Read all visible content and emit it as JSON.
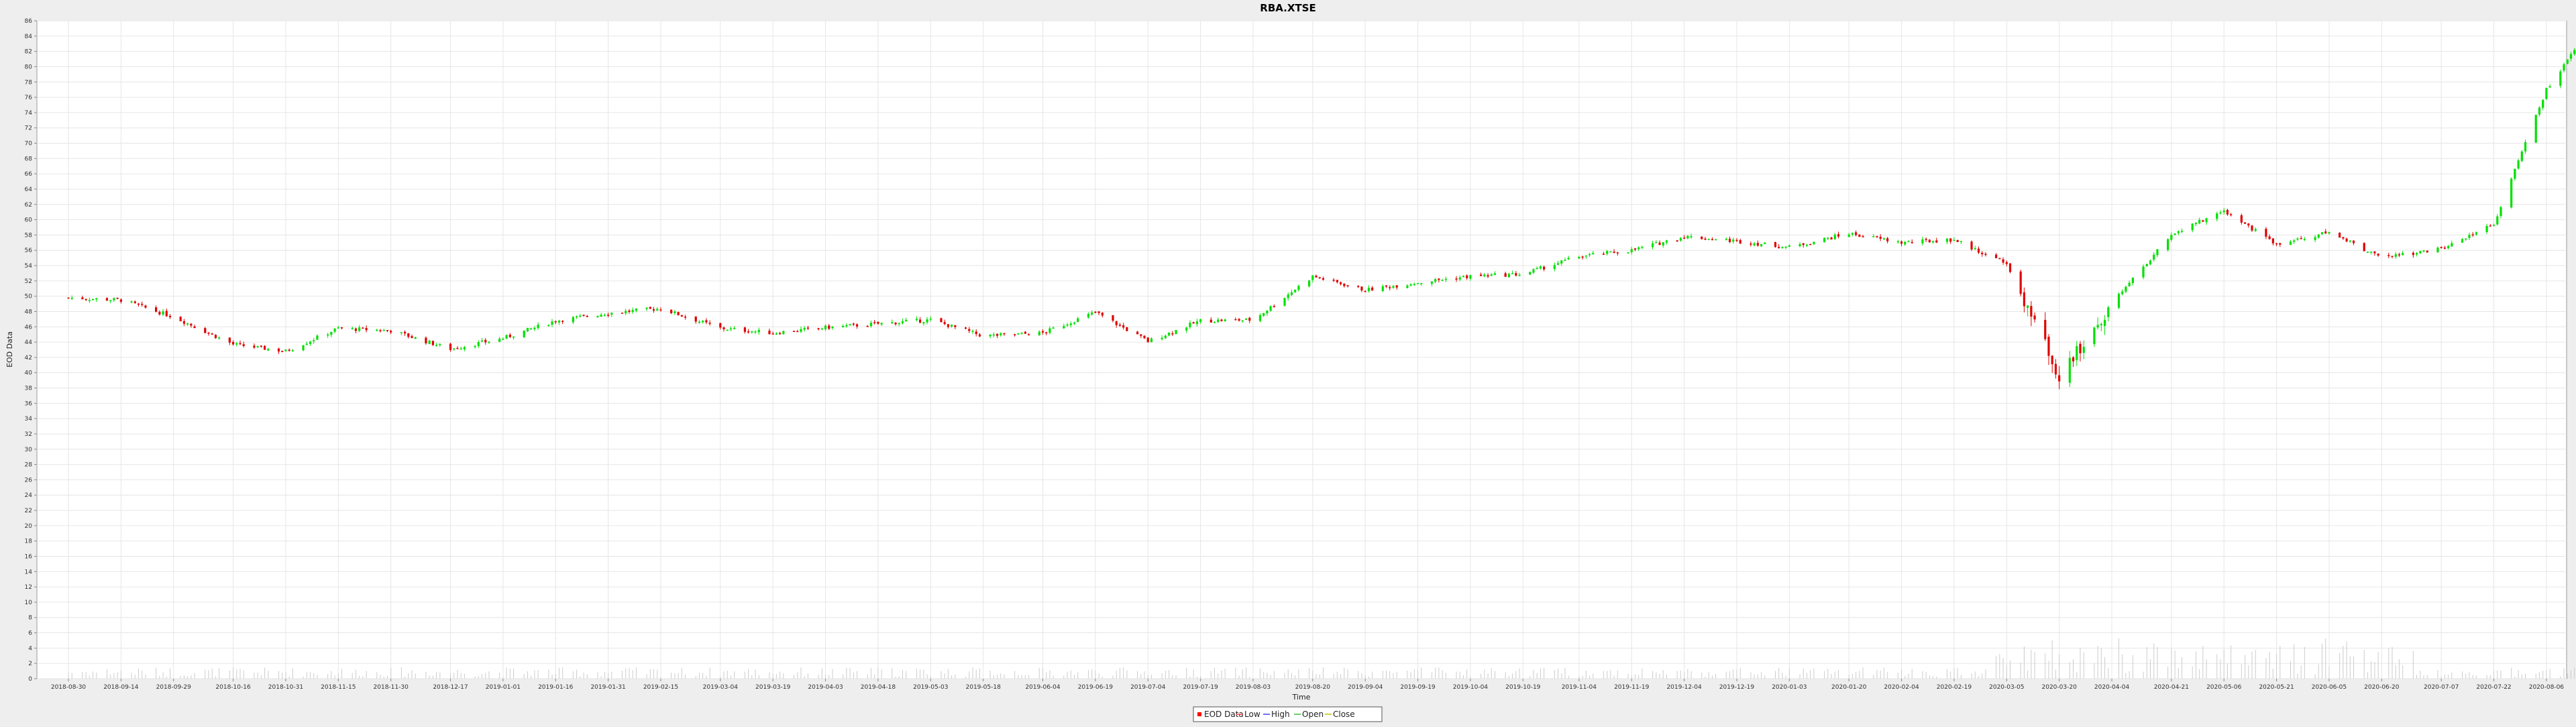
{
  "chart_data": {
    "type": "candlestick",
    "title": "RBA.XTSE",
    "xlabel": "Time",
    "ylabel": "EOD Data",
    "ylim": [
      0,
      86
    ],
    "y_ticks": [
      0,
      2,
      4,
      6,
      8,
      10,
      12,
      14,
      16,
      18,
      20,
      22,
      24,
      26,
      28,
      30,
      32,
      34,
      36,
      38,
      40,
      42,
      44,
      46,
      48,
      50,
      52,
      54,
      56,
      58,
      60,
      62,
      64,
      66,
      68,
      70,
      72,
      74,
      76,
      78,
      80,
      82,
      84,
      86
    ],
    "x_ticks": [
      "2018-08-30",
      "2018-09-14",
      "2018-09-29",
      "2018-10-16",
      "2018-10-31",
      "2018-11-15",
      "2018-11-30",
      "2018-12-17",
      "2019-01-01",
      "2019-01-16",
      "2019-01-31",
      "2019-02-15",
      "2019-03-04",
      "2019-03-19",
      "2019-04-03",
      "2019-04-18",
      "2019-05-03",
      "2019-05-18",
      "2019-06-04",
      "2019-06-19",
      "2019-07-04",
      "2019-07-19",
      "2019-08-03",
      "2019-08-20",
      "2019-09-04",
      "2019-09-19",
      "2019-10-04",
      "2019-10-19",
      "2019-11-04",
      "2019-11-19",
      "2019-12-04",
      "2019-12-19",
      "2020-01-03",
      "2020-01-20",
      "2020-02-04",
      "2020-02-19",
      "2020-03-05",
      "2020-03-20",
      "2020-04-04",
      "2020-04-21",
      "2020-05-06",
      "2020-05-21",
      "2020-06-05",
      "2020-06-20",
      "2020-07-07",
      "2020-07-22",
      "2020-08-06"
    ],
    "grid": true,
    "legend_position": "bottom-center",
    "legend": [
      "EOD Data",
      "Low",
      "High",
      "Open",
      "Close"
    ],
    "colors": {
      "up": "#00e000",
      "down": "#e00000",
      "volume": "#cccccc",
      "grid": "#e6e6e6",
      "plot_bg": "#ffffff"
    },
    "close_series": [
      {
        "date": "2018-08-30",
        "close": 49.8
      },
      {
        "date": "2018-09-14",
        "close": 49.5
      },
      {
        "date": "2018-09-29",
        "close": 47.3
      },
      {
        "date": "2018-10-16",
        "close": 43.7
      },
      {
        "date": "2018-10-31",
        "close": 42.8
      },
      {
        "date": "2018-11-15",
        "close": 45.8
      },
      {
        "date": "2018-11-30",
        "close": 45.5
      },
      {
        "date": "2018-12-17",
        "close": 43.1
      },
      {
        "date": "2019-01-01",
        "close": 44.5
      },
      {
        "date": "2019-01-16",
        "close": 46.8
      },
      {
        "date": "2019-01-31",
        "close": 47.8
      },
      {
        "date": "2019-02-15",
        "close": 48.4
      },
      {
        "date": "2019-03-04",
        "close": 45.8
      },
      {
        "date": "2019-03-19",
        "close": 45.2
      },
      {
        "date": "2019-04-03",
        "close": 45.9
      },
      {
        "date": "2019-04-18",
        "close": 46.4
      },
      {
        "date": "2019-05-03",
        "close": 46.9
      },
      {
        "date": "2019-05-18",
        "close": 44.8
      },
      {
        "date": "2019-06-04",
        "close": 45.2
      },
      {
        "date": "2019-06-19",
        "close": 47.9
      },
      {
        "date": "2019-07-04",
        "close": 44.1
      },
      {
        "date": "2019-07-19",
        "close": 46.8
      },
      {
        "date": "2019-08-03",
        "close": 46.9
      },
      {
        "date": "2019-08-20",
        "close": 52.6
      },
      {
        "date": "2019-09-04",
        "close": 50.8
      },
      {
        "date": "2019-09-19",
        "close": 51.8
      },
      {
        "date": "2019-10-04",
        "close": 52.6
      },
      {
        "date": "2019-10-19",
        "close": 52.9
      },
      {
        "date": "2019-11-04",
        "close": 55.2
      },
      {
        "date": "2019-11-19",
        "close": 56.0
      },
      {
        "date": "2019-12-04",
        "close": 57.8
      },
      {
        "date": "2019-12-19",
        "close": 57.2
      },
      {
        "date": "2020-01-03",
        "close": 56.4
      },
      {
        "date": "2020-01-20",
        "close": 58.2
      },
      {
        "date": "2020-02-04",
        "close": 57.0
      },
      {
        "date": "2020-02-19",
        "close": 57.4
      },
      {
        "date": "2020-03-05",
        "close": 54.2
      },
      {
        "date": "2020-03-20",
        "close": 39.5
      },
      {
        "date": "2020-04-04",
        "close": 49.0
      },
      {
        "date": "2020-04-21",
        "close": 58.0
      },
      {
        "date": "2020-05-06",
        "close": 61.2
      },
      {
        "date": "2020-05-21",
        "close": 56.8
      },
      {
        "date": "2020-06-05",
        "close": 58.4
      },
      {
        "date": "2020-06-20",
        "close": 55.0
      },
      {
        "date": "2020-07-07",
        "close": 56.2
      },
      {
        "date": "2020-07-22",
        "close": 59.5
      },
      {
        "date": "2020-08-06",
        "close": 77.0
      },
      {
        "date": "2020-08-14",
        "close": 82.0
      }
    ]
  },
  "legend_items": [
    {
      "label": "EOD Data"
    },
    {
      "label": "Low"
    },
    {
      "label": "High"
    },
    {
      "label": "Open"
    },
    {
      "label": "Close"
    }
  ]
}
